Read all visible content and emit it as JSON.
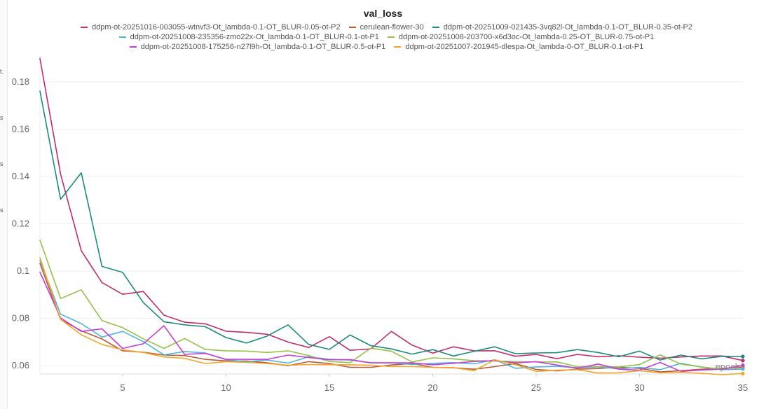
{
  "chart_data": {
    "type": "line",
    "title": "val_loss",
    "xlabel": "epoch",
    "ylabel": "",
    "xlim": [
      1,
      35
    ],
    "ylim": [
      0.0565,
      0.191
    ],
    "grid": true,
    "legend_position": "top-center",
    "x_ticks": [
      5,
      10,
      15,
      20,
      25,
      30,
      35
    ],
    "y_ticks": [
      0.06,
      0.08,
      0.1,
      0.12,
      0.14,
      0.16,
      0.18
    ],
    "y_tick_labels": [
      "0.06",
      "0.08",
      "0.1",
      "0.12",
      "0.14",
      "0.16",
      "0.18"
    ],
    "x": [
      1,
      2,
      3,
      4,
      5,
      6,
      7,
      8,
      9,
      10,
      11,
      12,
      13,
      14,
      15,
      16,
      17,
      18,
      19,
      20,
      21,
      22,
      23,
      24,
      25,
      26,
      27,
      28,
      29,
      30,
      31,
      32,
      33,
      34,
      35
    ],
    "series": [
      {
        "name": "ddpm-ot-20251016-003055-wtnvf3-Ot_lambda-0.1-OT_BLUR-0.05-ot-P2",
        "color": "#c22c6d",
        "values": [
          0.19,
          0.141,
          0.1086,
          0.0952,
          0.0902,
          0.0914,
          0.0814,
          0.0784,
          0.0777,
          0.0746,
          0.0741,
          0.0733,
          0.07,
          0.0677,
          0.0723,
          0.0665,
          0.0671,
          0.0745,
          0.0687,
          0.0653,
          0.068,
          0.0663,
          0.0663,
          0.064,
          0.0648,
          0.063,
          0.0648,
          0.0638,
          0.0642,
          0.0636,
          0.0632,
          0.0637,
          0.0641,
          0.0641,
          0.0622
        ]
      },
      {
        "name": "cerulean-flower-30",
        "color": "#b85a3a",
        "values": [
          0.1033,
          0.0795,
          0.0748,
          0.0713,
          0.0663,
          0.0657,
          0.0645,
          0.0643,
          0.0627,
          0.062,
          0.062,
          0.0612,
          0.06,
          0.0617,
          0.0609,
          0.0593,
          0.0593,
          0.0603,
          0.0609,
          0.0593,
          0.0591,
          0.0585,
          0.0596,
          0.0609,
          0.0584,
          0.0578,
          0.0585,
          0.0588,
          0.0593,
          0.0589,
          0.0574,
          0.0579,
          0.0585,
          0.0589,
          0.0593
        ]
      },
      {
        "name": "ddpm-ot-20251009-021435-3vq82l-Ot_lambda-0.1-OT_BLUR-0.35-ot-P2",
        "color": "#1c8a7d",
        "values": [
          0.1762,
          0.1304,
          0.1416,
          0.102,
          0.0995,
          0.0867,
          0.0786,
          0.0773,
          0.0765,
          0.0719,
          0.0696,
          0.0726,
          0.0773,
          0.069,
          0.0669,
          0.073,
          0.0685,
          0.0671,
          0.0649,
          0.0668,
          0.0641,
          0.0661,
          0.068,
          0.0651,
          0.0654,
          0.0655,
          0.0668,
          0.0656,
          0.0638,
          0.0662,
          0.0624,
          0.0645,
          0.0629,
          0.064,
          0.0639
        ]
      },
      {
        "name": "ddpm-ot-20251008-235356-zmo22x-Ot_lambda-0.1-OT_BLUR-0.1-ot-P1",
        "color": "#4fb8d8",
        "values": [
          0.1046,
          0.0818,
          0.0778,
          0.0721,
          0.0745,
          0.0702,
          0.0646,
          0.066,
          0.0654,
          0.0625,
          0.0617,
          0.0624,
          0.0611,
          0.0638,
          0.0627,
          0.0624,
          0.0612,
          0.0612,
          0.0605,
          0.061,
          0.0613,
          0.0608,
          0.0625,
          0.0589,
          0.0595,
          0.0597,
          0.0592,
          0.0595,
          0.0587,
          0.0593,
          0.0583,
          0.061,
          0.0594,
          0.0583,
          0.0586
        ]
      },
      {
        "name": "ddpm-ot-20251008-203700-x6d3oc-Ot_lambda-0.25-OT_BLUR-0.75-ot-P1",
        "color": "#93c24a",
        "values": [
          0.1131,
          0.0884,
          0.0921,
          0.0791,
          0.0761,
          0.0714,
          0.0673,
          0.0715,
          0.0669,
          0.0663,
          0.0662,
          0.0656,
          0.0663,
          0.0643,
          0.0618,
          0.0613,
          0.0674,
          0.0661,
          0.0616,
          0.0633,
          0.0629,
          0.0621,
          0.062,
          0.0617,
          0.0616,
          0.0616,
          0.0596,
          0.0596,
          0.0595,
          0.0605,
          0.0646,
          0.0607,
          0.0595,
          0.0585,
          0.06
        ]
      },
      {
        "name": "ddpm-ot-20251008-175256-n27l9h-Ot_lambda-0.1-OT_BLUR-0.5-ot-P1",
        "color": "#c63fd4",
        "values": [
          0.0996,
          0.0802,
          0.0745,
          0.0756,
          0.0673,
          0.0693,
          0.0769,
          0.0648,
          0.0652,
          0.0627,
          0.0627,
          0.0627,
          0.0645,
          0.0635,
          0.0625,
          0.0626,
          0.0612,
          0.0612,
          0.0612,
          0.0604,
          0.061,
          0.0618,
          0.0621,
          0.0612,
          0.0617,
          0.0603,
          0.0589,
          0.0607,
          0.0585,
          0.0581,
          0.0614,
          0.0576,
          0.0582,
          0.0585,
          0.0602
        ]
      },
      {
        "name": "ddpm-ot-20251007-201945-dlespa-Ot_lambda-0-OT_BLUR-0.1-ot-P1",
        "color": "#f2a62a",
        "values": [
          0.1057,
          0.0796,
          0.0731,
          0.069,
          0.0667,
          0.0656,
          0.0637,
          0.0631,
          0.0609,
          0.0617,
          0.0614,
          0.0609,
          0.0602,
          0.0605,
          0.0604,
          0.0604,
          0.0602,
          0.0596,
          0.0596,
          0.0593,
          0.0592,
          0.0579,
          0.0625,
          0.0604,
          0.0576,
          0.0581,
          0.0583,
          0.0569,
          0.057,
          0.0579,
          0.057,
          0.0572,
          0.0568,
          0.0562,
          0.0567
        ]
      }
    ]
  },
  "left_edge_fragments": [
    "t.",
    "s",
    "s",
    "s"
  ]
}
